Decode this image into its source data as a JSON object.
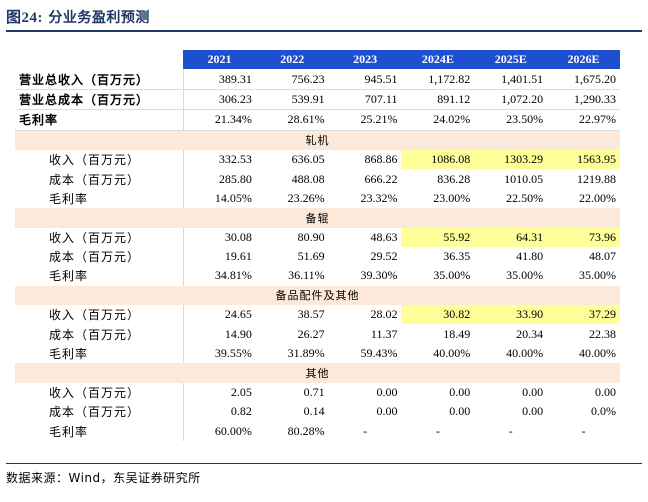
{
  "figure": {
    "number": "图24:",
    "title": "分业务盈利预测"
  },
  "header": {
    "years": [
      "2021",
      "2022",
      "2023",
      "2024E",
      "2025E",
      "2026E"
    ]
  },
  "totals": [
    {
      "label": "营业总收入（百万元）",
      "values": [
        "389.31",
        "756.23",
        "945.51",
        "1,172.82",
        "1,401.51",
        "1,675.20"
      ]
    },
    {
      "label": "营业总成本（百万元）",
      "values": [
        "306.23",
        "539.91",
        "707.11",
        "891.12",
        "1,072.20",
        "1,290.33"
      ]
    },
    {
      "label": "毛利率",
      "values": [
        "21.34%",
        "28.61%",
        "25.21%",
        "24.02%",
        "23.50%",
        "22.97%"
      ]
    }
  ],
  "segments": [
    {
      "name": "轧机",
      "rows": [
        {
          "label": "收入（百万元）",
          "values": [
            "332.53",
            "636.05",
            "868.86",
            "1086.08",
            "1303.29",
            "1563.95"
          ]
        },
        {
          "label": "成本（百万元）",
          "values": [
            "285.80",
            "488.08",
            "666.22",
            "836.28",
            "1010.05",
            "1219.88"
          ]
        },
        {
          "label": "毛利率",
          "values": [
            "14.05%",
            "23.26%",
            "23.32%",
            "23.00%",
            "22.50%",
            "22.00%"
          ]
        }
      ]
    },
    {
      "name": "备辊",
      "rows": [
        {
          "label": "收入（百万元）",
          "values": [
            "30.08",
            "80.90",
            "48.63",
            "55.92",
            "64.31",
            "73.96"
          ]
        },
        {
          "label": "成本（百万元）",
          "values": [
            "19.61",
            "51.69",
            "29.52",
            "36.35",
            "41.80",
            "48.07"
          ]
        },
        {
          "label": "毛利率",
          "values": [
            "34.81%",
            "36.11%",
            "39.30%",
            "35.00%",
            "35.00%",
            "35.00%"
          ]
        }
      ]
    },
    {
      "name": "备品配件及其他",
      "rows": [
        {
          "label": "收入（百万元）",
          "values": [
            "24.65",
            "38.57",
            "28.02",
            "30.82",
            "33.90",
            "37.29"
          ]
        },
        {
          "label": "成本（百万元）",
          "values": [
            "14.90",
            "26.27",
            "11.37",
            "18.49",
            "20.34",
            "22.38"
          ]
        },
        {
          "label": "毛利率",
          "values": [
            "39.55%",
            "31.89%",
            "59.43%",
            "40.00%",
            "40.00%",
            "40.00%"
          ]
        }
      ]
    },
    {
      "name": "其他",
      "rows": [
        {
          "label": "收入（百万元）",
          "values": [
            "2.05",
            "0.71",
            "0.00",
            "0.00",
            "0.00",
            "0.00"
          ]
        },
        {
          "label": "成本（百万元）",
          "values": [
            "0.82",
            "0.14",
            "0.00",
            "0.00",
            "0.00",
            "0.0%"
          ]
        },
        {
          "label": "毛利率",
          "values": [
            "60.00%",
            "80.28%",
            "-",
            "-",
            "-",
            "-"
          ]
        }
      ]
    }
  ],
  "source": "数据来源：Wind，东吴证券研究所",
  "colors": {
    "header_bg": "#1f4fd1",
    "segment_bg": "#fde9d9",
    "highlight_bg": "#ffff99",
    "title": "#1f3864"
  }
}
